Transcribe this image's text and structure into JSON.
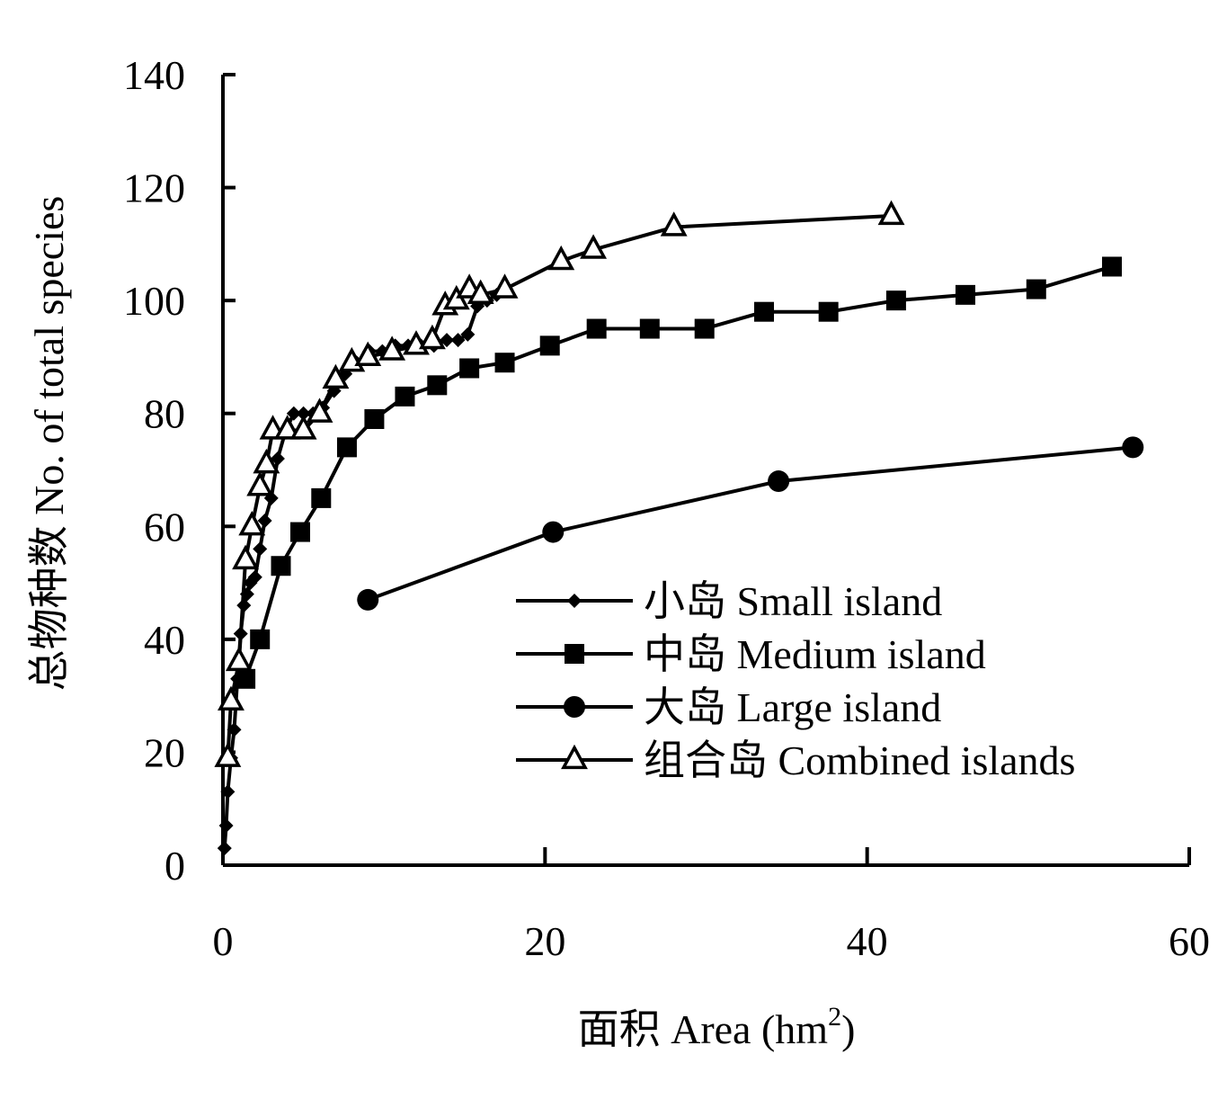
{
  "chart_data": {
    "type": "line",
    "xlabel": "面积 Area (hm",
    "xlabel_sup": "2",
    "xlabel_close": ")",
    "ylabel": "总物种数 No. of total species",
    "xlim": [
      0,
      60
    ],
    "ylim": [
      0,
      140
    ],
    "x_ticks": [
      0,
      20,
      40,
      60
    ],
    "y_ticks": [
      0,
      20,
      40,
      60,
      80,
      100,
      120,
      140
    ],
    "x_tick_labels": [
      "0",
      "20",
      "40",
      "60"
    ],
    "y_tick_labels": [
      "0",
      "20",
      "40",
      "60",
      "80",
      "100",
      "120",
      "140"
    ],
    "grid": false,
    "legend_position": "lower-right",
    "series": [
      {
        "name": "小岛 Small island",
        "marker": "diamond",
        "x": [
          0.1,
          0.2,
          0.3,
          0.5,
          0.7,
          0.9,
          1.1,
          1.3,
          1.5,
          1.7,
          2.0,
          2.3,
          2.6,
          3.0,
          3.4,
          3.9,
          4.4,
          5.0,
          5.6,
          6.2,
          6.9,
          7.6,
          8.3,
          9.1,
          9.9,
          10.7,
          11.5,
          12.3,
          13.1,
          13.9,
          14.6,
          15.2,
          15.8,
          16.4,
          17.0,
          17.6
        ],
        "y": [
          3,
          7,
          13,
          19,
          24,
          33,
          41,
          46,
          48,
          50,
          51,
          56,
          61,
          65,
          72,
          77,
          80,
          80,
          80,
          81,
          84,
          87,
          89,
          91,
          91,
          92,
          92,
          92,
          92,
          93,
          93,
          94,
          99,
          100,
          101,
          102
        ]
      },
      {
        "name": "中岛 Medium island",
        "marker": "square",
        "x": [
          1.4,
          2.3,
          3.6,
          4.8,
          6.1,
          7.7,
          9.4,
          11.3,
          13.3,
          15.3,
          17.5,
          20.3,
          23.2,
          26.5,
          29.9,
          33.6,
          37.6,
          41.8,
          46.1,
          50.5,
          55.2
        ],
        "y": [
          33,
          40,
          53,
          59,
          65,
          74,
          79,
          83,
          85,
          88,
          89,
          92,
          95,
          95,
          95,
          98,
          98,
          100,
          101,
          102,
          106
        ]
      },
      {
        "name": "大岛 Large island",
        "marker": "circle",
        "x": [
          9.0,
          20.5,
          34.5,
          56.5
        ],
        "y": [
          47,
          59,
          68,
          74
        ]
      },
      {
        "name": "组合岛 Combined islands",
        "marker": "triangle",
        "x": [
          0.3,
          0.5,
          1.0,
          1.4,
          1.8,
          2.3,
          2.7,
          3.1,
          4.0,
          5.0,
          6.0,
          7.0,
          8.0,
          9.0,
          10.5,
          12.0,
          13.0,
          13.8,
          14.5,
          15.3,
          16.0,
          17.5,
          21.0,
          23.0,
          28.0,
          41.5
        ],
        "y": [
          19,
          29,
          36,
          54,
          60,
          67,
          71,
          77,
          77,
          77,
          80,
          86,
          89,
          90,
          91,
          92,
          93,
          99,
          100,
          102,
          101,
          102,
          107,
          109,
          113,
          115
        ]
      }
    ]
  }
}
